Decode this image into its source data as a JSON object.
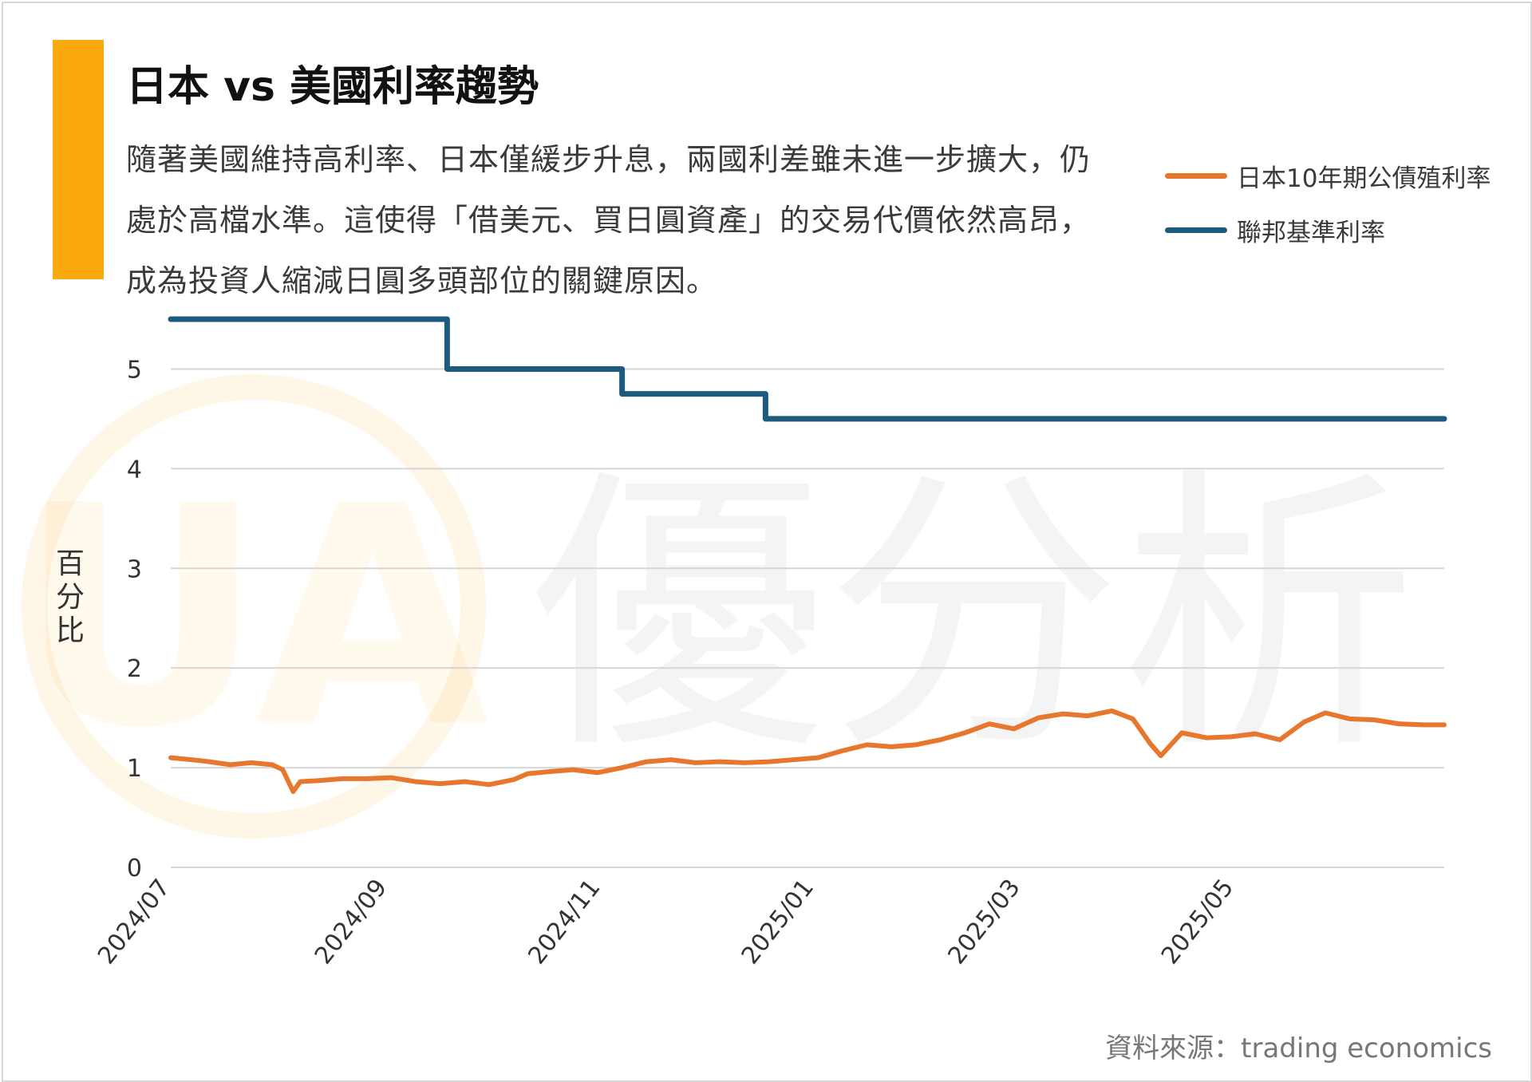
{
  "title": "日本 vs 美國利率趨勢",
  "description": "隨著美國維持高利率、日本僅緩步升息，兩國利差雖未進一步擴大，仍處於高檔水準。這使得「借美元、買日圓資產」的交易代價依然高昂，成為投資人縮減日圓多頭部位的關鍵原因。",
  "source": "資料來源：trading economics",
  "watermark": {
    "text": "優分析",
    "logo": "UA"
  },
  "colors": {
    "accent": "#F9A90D",
    "japan": "#E8772E",
    "us": "#1D5B7E",
    "grid": "#d6d6d6"
  },
  "chart_data": {
    "type": "line",
    "title": "日本 vs 美國利率趨勢",
    "ylabel": "百分比",
    "xlabel": "",
    "ylim": [
      0,
      5.5
    ],
    "yticks": [
      0,
      1,
      2,
      3,
      4,
      5
    ],
    "xlim": [
      "2024-07-01",
      "2025-06-30"
    ],
    "xticks": [
      "2024/07",
      "2024/09",
      "2024/11",
      "2025/01",
      "2025/03",
      "2025/05"
    ],
    "xtick_dates": [
      "2024-07-01",
      "2024-09-01",
      "2024-11-01",
      "2025-01-01",
      "2025-03-01",
      "2025-05-01"
    ],
    "grid": true,
    "legend_position": "top-right",
    "series": [
      {
        "name": "日本10年期公債殖利率",
        "color": "#E8772E",
        "x": [
          "2024-07-01",
          "2024-07-07",
          "2024-07-12",
          "2024-07-18",
          "2024-07-24",
          "2024-07-30",
          "2024-08-02",
          "2024-08-05",
          "2024-08-07",
          "2024-08-12",
          "2024-08-19",
          "2024-08-26",
          "2024-09-02",
          "2024-09-09",
          "2024-09-16",
          "2024-09-23",
          "2024-09-30",
          "2024-10-07",
          "2024-10-11",
          "2024-10-17",
          "2024-10-24",
          "2024-10-31",
          "2024-11-07",
          "2024-11-14",
          "2024-11-21",
          "2024-11-28",
          "2024-12-05",
          "2024-12-12",
          "2024-12-19",
          "2024-12-26",
          "2025-01-02",
          "2025-01-09",
          "2025-01-16",
          "2025-01-23",
          "2025-01-30",
          "2025-02-06",
          "2025-02-13",
          "2025-02-20",
          "2025-02-27",
          "2025-03-06",
          "2025-03-13",
          "2025-03-20",
          "2025-03-27",
          "2025-04-02",
          "2025-04-07",
          "2025-04-10",
          "2025-04-16",
          "2025-04-23",
          "2025-04-30",
          "2025-05-07",
          "2025-05-14",
          "2025-05-21",
          "2025-05-27",
          "2025-06-03",
          "2025-06-10",
          "2025-06-17",
          "2025-06-24",
          "2025-06-30"
        ],
        "values": [
          1.1,
          1.08,
          1.06,
          1.03,
          1.05,
          1.03,
          0.98,
          0.76,
          0.86,
          0.87,
          0.89,
          0.89,
          0.9,
          0.86,
          0.84,
          0.86,
          0.83,
          0.88,
          0.94,
          0.96,
          0.98,
          0.95,
          1.0,
          1.06,
          1.08,
          1.05,
          1.06,
          1.05,
          1.06,
          1.08,
          1.1,
          1.17,
          1.23,
          1.21,
          1.23,
          1.28,
          1.35,
          1.44,
          1.39,
          1.5,
          1.54,
          1.52,
          1.57,
          1.49,
          1.24,
          1.12,
          1.35,
          1.3,
          1.31,
          1.34,
          1.28,
          1.46,
          1.55,
          1.49,
          1.48,
          1.44,
          1.43,
          1.43
        ]
      },
      {
        "name": "聯邦基準利率",
        "color": "#1D5B7E",
        "step": true,
        "x": [
          "2024-07-01",
          "2024-09-18",
          "2024-11-07",
          "2024-12-18",
          "2025-06-30"
        ],
        "values": [
          5.5,
          5.0,
          4.75,
          4.5,
          4.5
        ]
      }
    ]
  }
}
